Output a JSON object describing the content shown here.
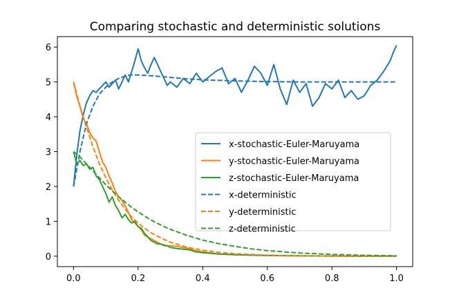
{
  "chart_data": {
    "type": "line",
    "title": "Comparing stochastic and deterministic solutions",
    "xlabel": "",
    "ylabel": "",
    "xlim": [
      -0.05,
      1.05
    ],
    "ylim": [
      -0.3,
      6.3
    ],
    "grid": false,
    "legend_position": "center-right",
    "xticks": [
      0.0,
      0.2,
      0.4,
      0.6,
      0.8,
      1.0
    ],
    "xtick_labels": [
      "0.0",
      "0.2",
      "0.4",
      "0.6",
      "0.8",
      "1.0"
    ],
    "yticks": [
      0,
      1,
      2,
      3,
      4,
      5,
      6
    ],
    "ytick_labels": [
      "0",
      "1",
      "2",
      "3",
      "4",
      "5",
      "6"
    ],
    "series": [
      {
        "name": "x-stochastic-Euler-Maruyama",
        "color": "#1f77b4",
        "style": "solid",
        "x": [
          0.0,
          0.01,
          0.02,
          0.03,
          0.04,
          0.05,
          0.06,
          0.07,
          0.08,
          0.09,
          0.1,
          0.11,
          0.12,
          0.13,
          0.14,
          0.15,
          0.16,
          0.17,
          0.18,
          0.19,
          0.2,
          0.21,
          0.22,
          0.23,
          0.24,
          0.25,
          0.26,
          0.27,
          0.28,
          0.29,
          0.3,
          0.32,
          0.34,
          0.36,
          0.38,
          0.4,
          0.42,
          0.44,
          0.46,
          0.48,
          0.5,
          0.52,
          0.54,
          0.56,
          0.58,
          0.6,
          0.62,
          0.64,
          0.66,
          0.68,
          0.7,
          0.72,
          0.74,
          0.76,
          0.78,
          0.8,
          0.82,
          0.84,
          0.86,
          0.88,
          0.9,
          0.92,
          0.94,
          0.96,
          0.98,
          0.99,
          1.0
        ],
        "values": [
          2.0,
          2.9,
          3.6,
          4.05,
          4.4,
          4.6,
          4.75,
          4.7,
          4.8,
          4.9,
          5.0,
          4.85,
          4.95,
          5.05,
          4.8,
          5.0,
          5.2,
          5.0,
          5.3,
          5.6,
          5.95,
          5.6,
          5.4,
          5.25,
          5.5,
          5.7,
          5.5,
          5.3,
          5.1,
          4.9,
          5.0,
          4.85,
          5.1,
          4.95,
          5.25,
          5.0,
          5.15,
          5.3,
          5.4,
          4.95,
          5.1,
          4.7,
          5.05,
          5.45,
          5.25,
          4.9,
          5.5,
          4.8,
          4.35,
          5.05,
          4.7,
          4.95,
          4.3,
          4.55,
          4.95,
          4.8,
          5.05,
          4.55,
          4.75,
          4.5,
          4.6,
          4.9,
          5.05,
          5.3,
          5.6,
          5.85,
          6.05
        ]
      },
      {
        "name": "y-stochastic-Euler-Maruyama",
        "color": "#ff7f0e",
        "style": "solid",
        "x": [
          0.0,
          0.01,
          0.02,
          0.03,
          0.04,
          0.05,
          0.06,
          0.07,
          0.08,
          0.09,
          0.1,
          0.11,
          0.12,
          0.13,
          0.14,
          0.15,
          0.16,
          0.17,
          0.18,
          0.19,
          0.2,
          0.21,
          0.22,
          0.23,
          0.24,
          0.25,
          0.26,
          0.27,
          0.28,
          0.29,
          0.3,
          0.32,
          0.34,
          0.36,
          0.38,
          0.4,
          0.45,
          0.5,
          0.6,
          0.7,
          0.8,
          0.9,
          1.0
        ],
        "values": [
          5.0,
          4.6,
          4.3,
          3.95,
          3.8,
          3.55,
          3.4,
          3.3,
          3.0,
          2.7,
          2.55,
          2.3,
          2.1,
          1.85,
          1.7,
          1.6,
          1.45,
          1.25,
          1.05,
          0.95,
          0.85,
          0.75,
          0.6,
          0.55,
          0.5,
          0.45,
          0.4,
          0.35,
          0.3,
          0.3,
          0.3,
          0.28,
          0.25,
          0.22,
          0.15,
          0.12,
          0.06,
          0.04,
          0.02,
          0.01,
          0.005,
          0.002,
          0.001
        ]
      },
      {
        "name": "z-stochastic-Euler-Maruyama",
        "color": "#2ca02c",
        "style": "solid",
        "x": [
          0.0,
          0.01,
          0.02,
          0.03,
          0.04,
          0.05,
          0.06,
          0.07,
          0.08,
          0.09,
          0.1,
          0.11,
          0.12,
          0.13,
          0.14,
          0.15,
          0.16,
          0.17,
          0.18,
          0.19,
          0.2,
          0.21,
          0.22,
          0.23,
          0.24,
          0.25,
          0.26,
          0.27,
          0.28,
          0.29,
          0.3,
          0.32,
          0.34,
          0.36,
          0.38,
          0.4,
          0.45,
          0.5,
          0.6,
          0.7,
          0.8,
          0.9,
          1.0
        ],
        "values": [
          3.0,
          2.65,
          2.75,
          2.6,
          2.65,
          2.5,
          2.55,
          2.3,
          2.2,
          2.0,
          1.8,
          1.55,
          1.7,
          1.45,
          1.3,
          1.1,
          1.2,
          1.05,
          0.95,
          1.0,
          0.85,
          0.8,
          0.65,
          0.55,
          0.45,
          0.4,
          0.35,
          0.35,
          0.32,
          0.3,
          0.25,
          0.22,
          0.2,
          0.18,
          0.12,
          0.1,
          0.06,
          0.04,
          0.02,
          0.01,
          0.005,
          0.002,
          0.001
        ]
      },
      {
        "name": "x-deterministic",
        "color": "#1f77b4",
        "style": "dashed",
        "x": [
          0.0,
          0.02,
          0.04,
          0.06,
          0.08,
          0.1,
          0.12,
          0.14,
          0.16,
          0.18,
          0.2,
          0.25,
          0.3,
          0.35,
          0.4,
          0.5,
          0.6,
          0.7,
          0.8,
          0.9,
          1.0
        ],
        "values": [
          2.0,
          3.0,
          3.8,
          4.3,
          4.65,
          4.85,
          5.0,
          5.1,
          5.17,
          5.2,
          5.2,
          5.17,
          5.13,
          5.09,
          5.06,
          5.03,
          5.01,
          5.0,
          5.0,
          5.0,
          5.0
        ]
      },
      {
        "name": "y-deterministic",
        "color": "#ff7f0e",
        "style": "dashed",
        "x": [
          0.0,
          0.02,
          0.04,
          0.06,
          0.08,
          0.1,
          0.12,
          0.14,
          0.16,
          0.18,
          0.2,
          0.22,
          0.24,
          0.26,
          0.28,
          0.3,
          0.35,
          0.4,
          0.45,
          0.5,
          0.6,
          0.7,
          0.8,
          0.9,
          1.0
        ],
        "values": [
          5.0,
          4.3,
          3.7,
          3.15,
          2.65,
          2.25,
          1.9,
          1.6,
          1.35,
          1.12,
          0.95,
          0.8,
          0.67,
          0.57,
          0.48,
          0.4,
          0.26,
          0.17,
          0.11,
          0.07,
          0.03,
          0.012,
          0.005,
          0.002,
          0.001
        ]
      },
      {
        "name": "z-deterministic",
        "color": "#2ca02c",
        "style": "dashed",
        "x": [
          0.0,
          0.02,
          0.04,
          0.06,
          0.08,
          0.1,
          0.12,
          0.14,
          0.16,
          0.18,
          0.2,
          0.22,
          0.24,
          0.26,
          0.28,
          0.3,
          0.35,
          0.4,
          0.45,
          0.5,
          0.55,
          0.6,
          0.7,
          0.8,
          0.9,
          1.0
        ],
        "values": [
          3.0,
          2.85,
          2.65,
          2.45,
          2.25,
          2.05,
          1.87,
          1.7,
          1.55,
          1.4,
          1.27,
          1.15,
          1.04,
          0.94,
          0.85,
          0.77,
          0.6,
          0.46,
          0.36,
          0.28,
          0.21,
          0.16,
          0.09,
          0.05,
          0.025,
          0.012
        ]
      }
    ]
  }
}
